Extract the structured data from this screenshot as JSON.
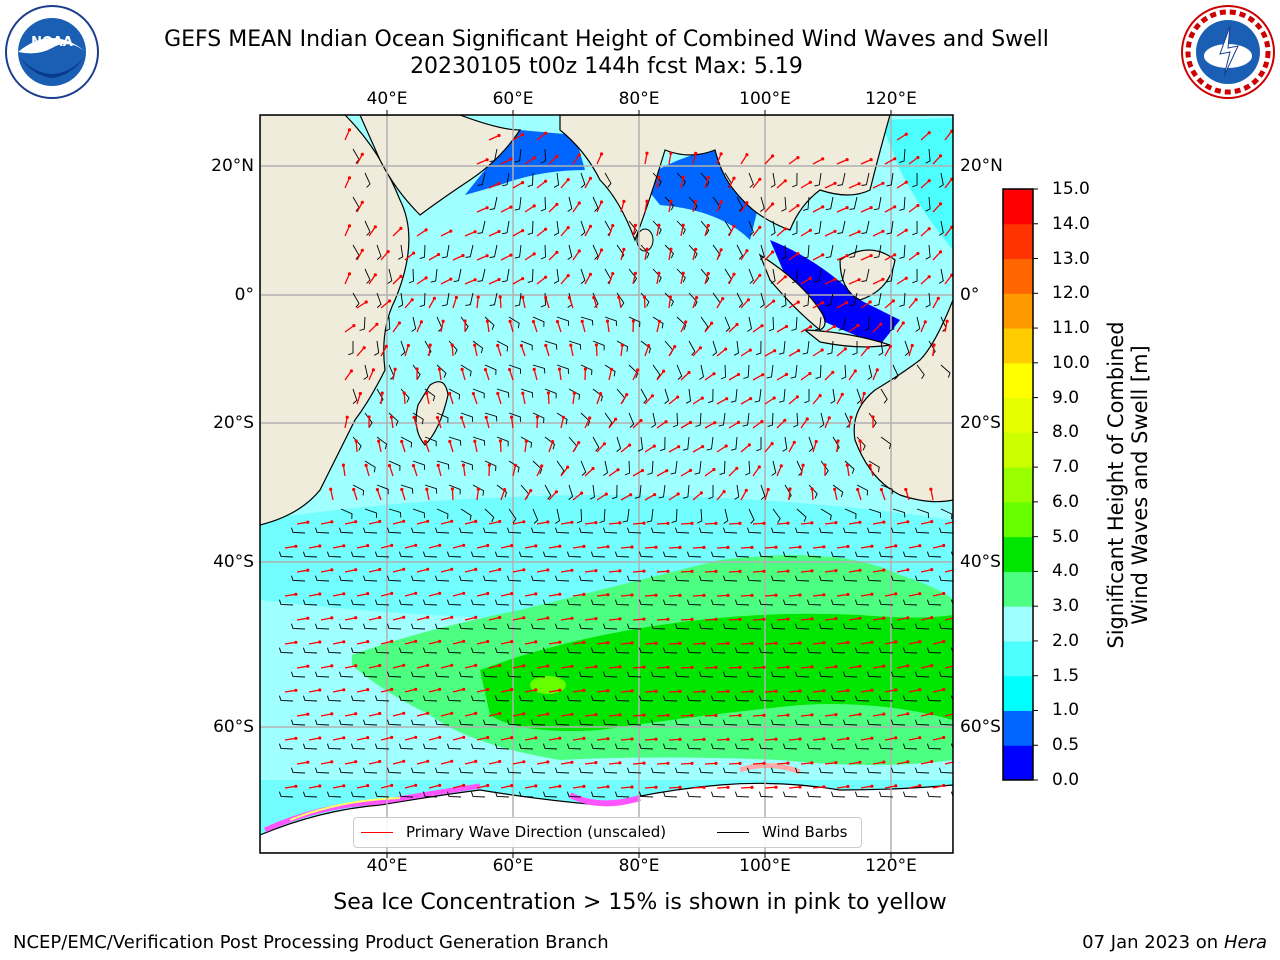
{
  "title": {
    "line1": "GEFS MEAN Indian Ocean Significant Height of Combined Wind Waves and Swell",
    "line2": "20230105 t00z 144h fcst   Max: 5.19"
  },
  "logos": {
    "left": "noaa-logo",
    "right": "national-weather-service-logo"
  },
  "map": {
    "lon_labels": [
      "40°E",
      "60°E",
      "80°E",
      "100°E",
      "120°E"
    ],
    "lat_labels": [
      "20°N",
      "0°",
      "20°S",
      "40°S",
      "60°S"
    ],
    "land_color": "#efecdc",
    "ice_colors": [
      "#ff55ff",
      "#ffaaaa",
      "#ffff66"
    ]
  },
  "colorbar": {
    "title_line1": "Significant Height of Combined",
    "title_line2": "Wind Waves and Swell [m]",
    "ticks": [
      "0.0",
      "0.5",
      "1.0",
      "1.5",
      "2.0",
      "3.0",
      "4.0",
      "5.0",
      "6.0",
      "7.0",
      "8.0",
      "9.0",
      "10.0",
      "11.0",
      "12.0",
      "13.0",
      "14.0",
      "15.0"
    ],
    "colors": [
      "#0000ff",
      "#0066ff",
      "#00ffff",
      "#4dfefe",
      "#a0ffff",
      "#4dff80",
      "#00e600",
      "#66ff00",
      "#99ff00",
      "#ccff00",
      "#e6ff00",
      "#ffff00",
      "#ffcc00",
      "#ff9900",
      "#ff6600",
      "#ff3300",
      "#ff0000"
    ]
  },
  "legend": {
    "wave": "Primary Wave Direction (unscaled)",
    "wind": "Wind Barbs"
  },
  "ice_note": "Sea Ice Concentration > 15% is shown in pink to yellow",
  "footer": {
    "left": "NCEP/EMC/Verification Post Processing Product Generation Branch",
    "date": "07 Jan 2023 on ",
    "machine": "Hera"
  }
}
